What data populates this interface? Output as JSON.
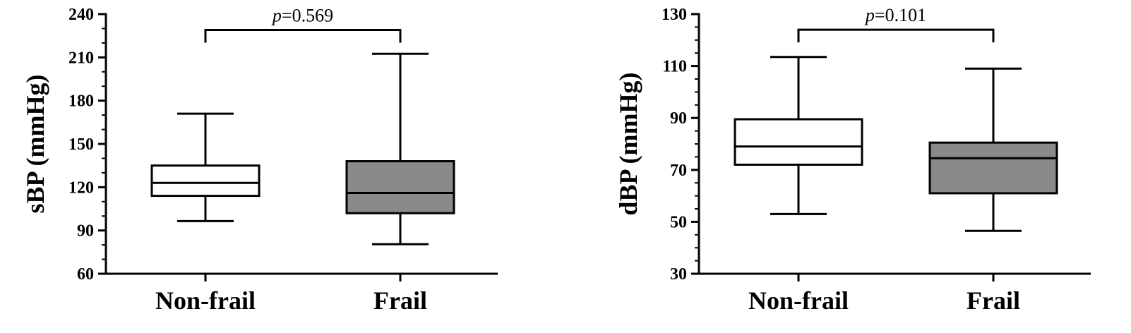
{
  "chart_data": [
    {
      "type": "box",
      "ylabel": "sBP (mmHg)",
      "ylim": [
        60,
        240
      ],
      "yticks": [
        60,
        90,
        120,
        150,
        180,
        210,
        240
      ],
      "minor_tick_step": 10,
      "categories": [
        "Non-frail",
        "Frail"
      ],
      "boxes": [
        {
          "category": "Non-frail",
          "min": 96.5,
          "q1": 114,
          "median": 123,
          "q3": 135,
          "max": 171,
          "fill": "#ffffff"
        },
        {
          "category": "Frail",
          "min": 80.5,
          "q1": 102,
          "median": 116,
          "q3": 138,
          "max": 212.5,
          "fill": "#8a8a8a"
        }
      ],
      "comparison": {
        "p_symbol": "p",
        "p_value": "=0.569",
        "bracket_y": 229
      }
    },
    {
      "type": "box",
      "ylabel": "dBP (mmHg)",
      "ylim": [
        30,
        130
      ],
      "yticks": [
        30,
        50,
        70,
        90,
        110,
        130
      ],
      "minor_tick_step": 5,
      "categories": [
        "Non-frail",
        "Frail"
      ],
      "boxes": [
        {
          "category": "Non-frail",
          "min": 53,
          "q1": 72,
          "median": 79,
          "q3": 89.5,
          "max": 113.5,
          "fill": "#ffffff"
        },
        {
          "category": "Frail",
          "min": 46.5,
          "q1": 61,
          "median": 74.5,
          "q3": 80.5,
          "max": 109,
          "fill": "#8a8a8a"
        }
      ],
      "comparison": {
        "p_symbol": "p",
        "p_value": "=0.101",
        "bracket_y": 124
      }
    }
  ]
}
